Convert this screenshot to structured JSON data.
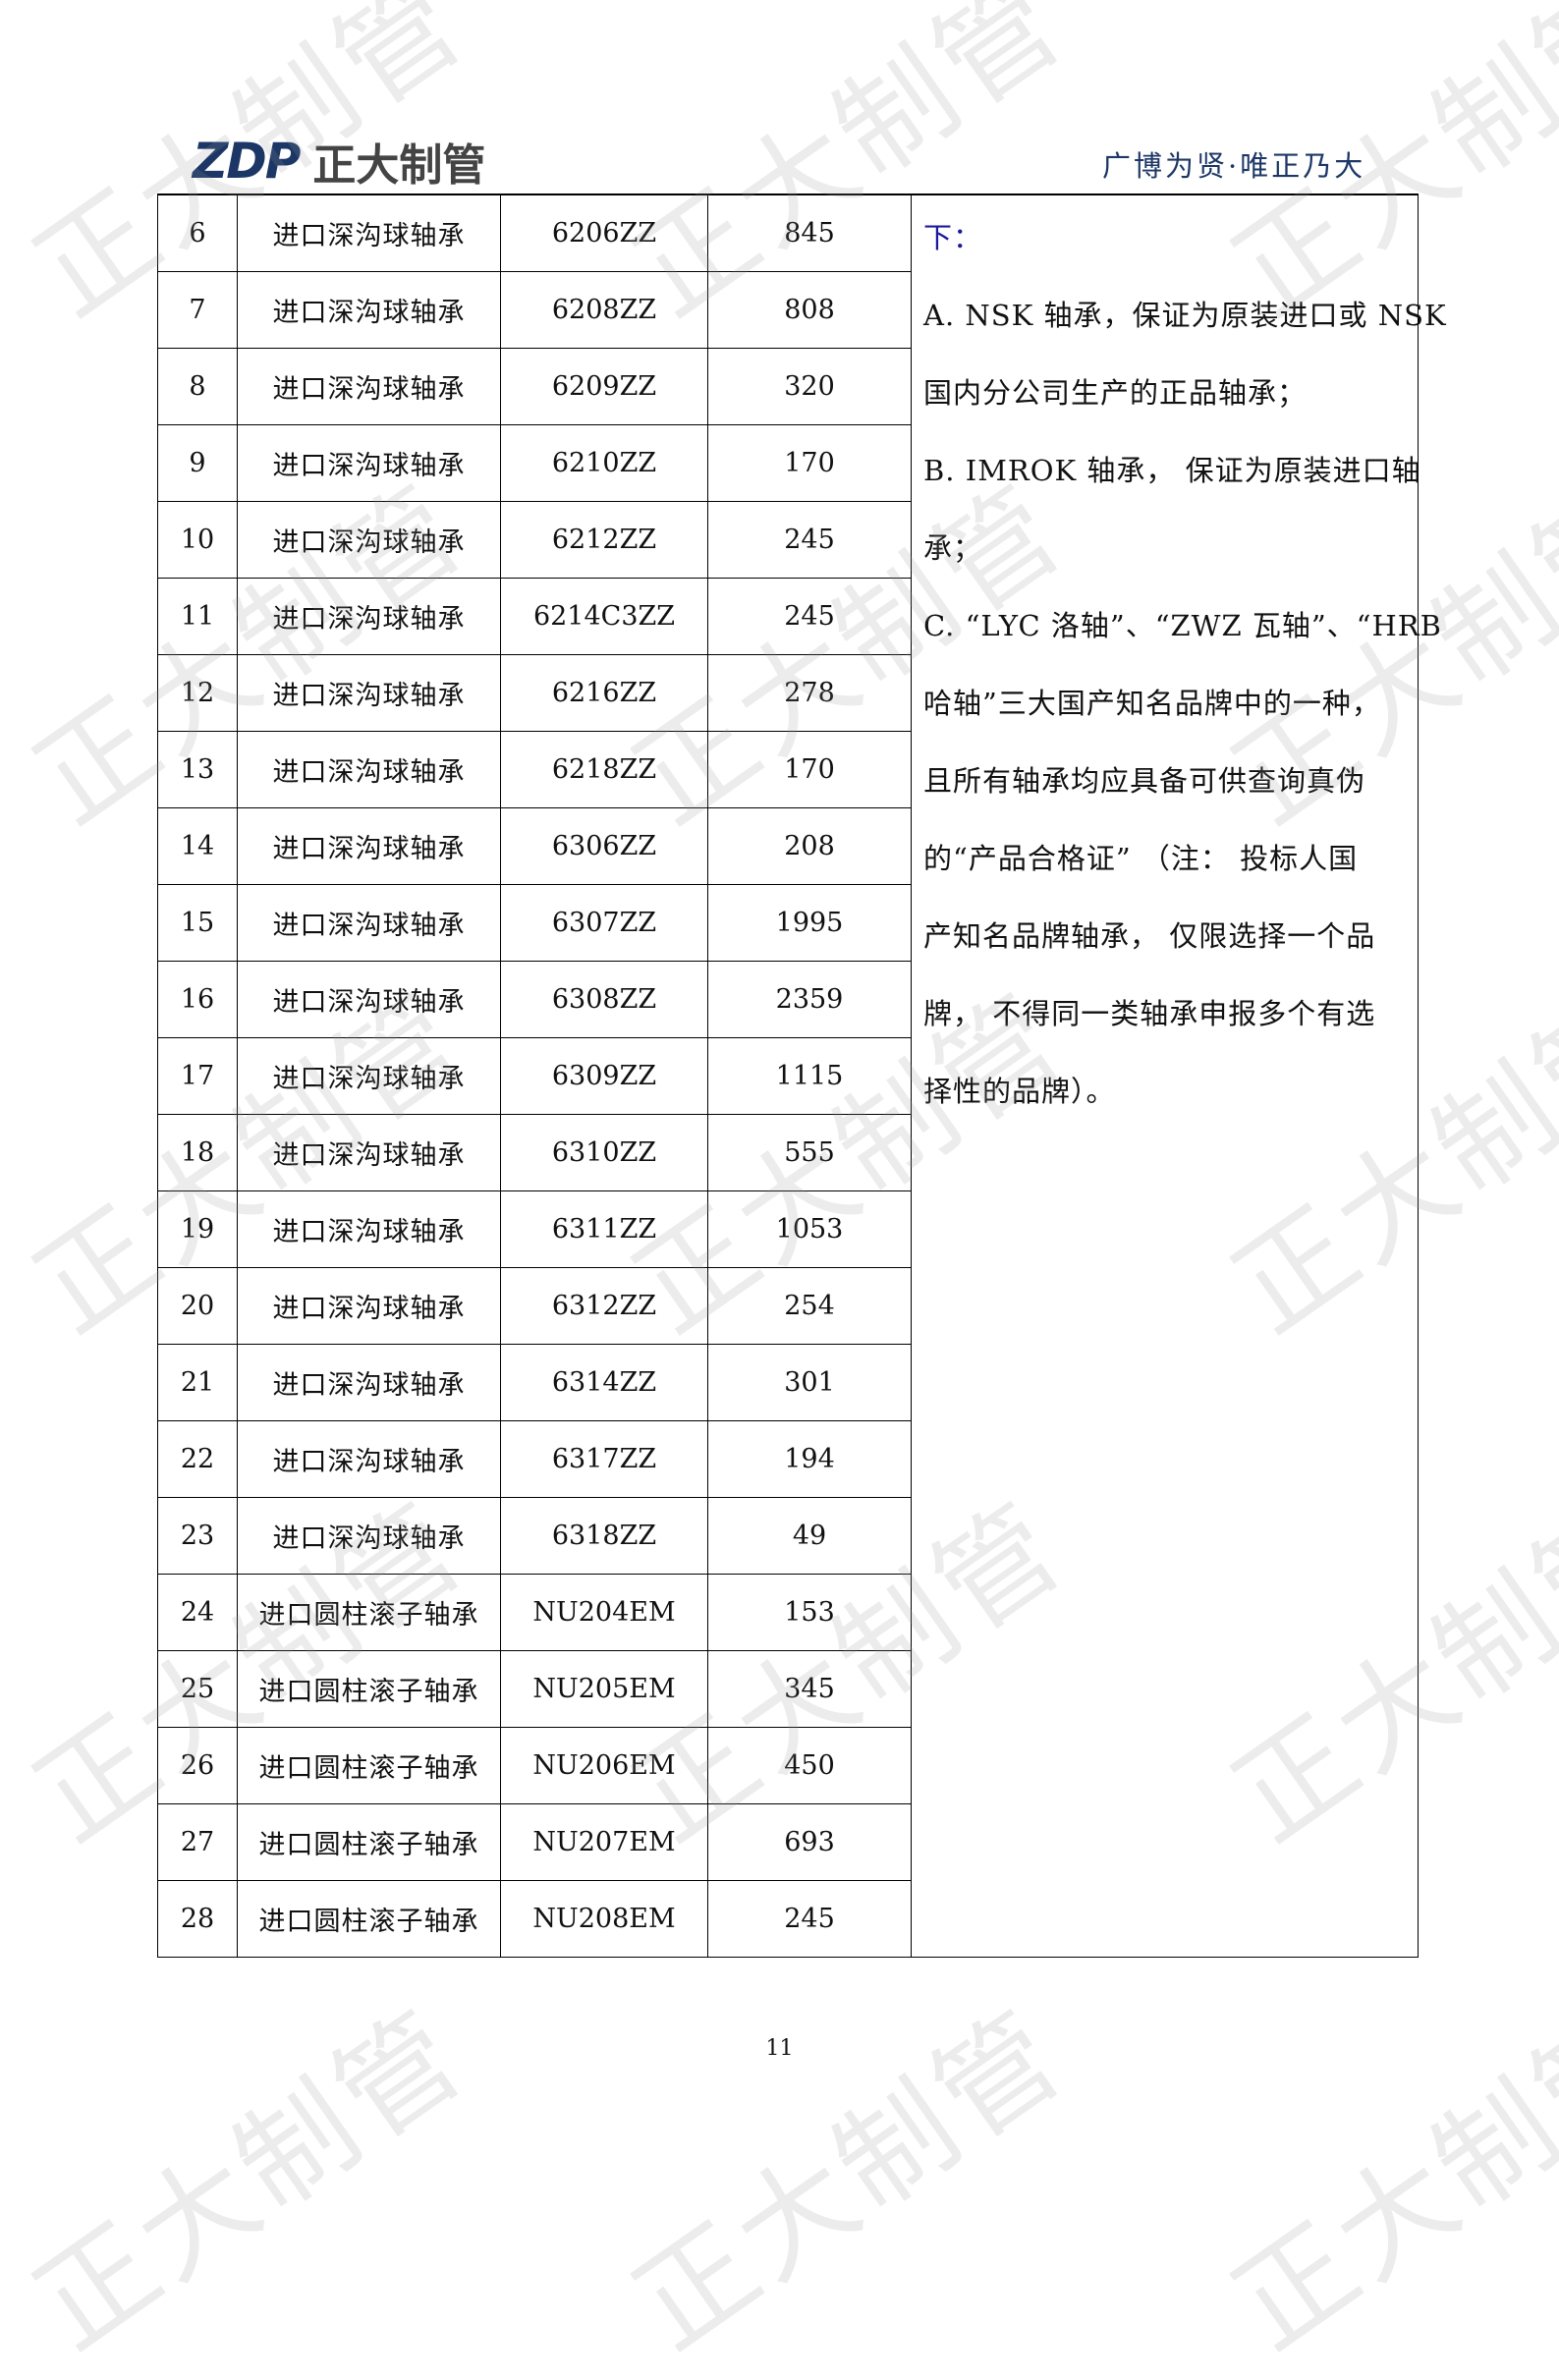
{
  "header": {
    "logo_mark": "ZDP",
    "logo_name": "正大制管",
    "slogan": "广博为贤·唯正乃大"
  },
  "watermark": "正大制管",
  "table": {
    "rows": [
      [
        "6",
        "进口深沟球轴承",
        "6206ZZ",
        "845"
      ],
      [
        "7",
        "进口深沟球轴承",
        "6208ZZ",
        "808"
      ],
      [
        "8",
        "进口深沟球轴承",
        "6209ZZ",
        "320"
      ],
      [
        "9",
        "进口深沟球轴承",
        "6210ZZ",
        "170"
      ],
      [
        "10",
        "进口深沟球轴承",
        "6212ZZ",
        "245"
      ],
      [
        "11",
        "进口深沟球轴承",
        "6214C3ZZ",
        "245"
      ],
      [
        "12",
        "进口深沟球轴承",
        "6216ZZ",
        "278"
      ],
      [
        "13",
        "进口深沟球轴承",
        "6218ZZ",
        "170"
      ],
      [
        "14",
        "进口深沟球轴承",
        "6306ZZ",
        "208"
      ],
      [
        "15",
        "进口深沟球轴承",
        "6307ZZ",
        "1995"
      ],
      [
        "16",
        "进口深沟球轴承",
        "6308ZZ",
        "2359"
      ],
      [
        "17",
        "进口深沟球轴承",
        "6309ZZ",
        "1115"
      ],
      [
        "18",
        "进口深沟球轴承",
        "6310ZZ",
        "555"
      ],
      [
        "19",
        "进口深沟球轴承",
        "6311ZZ",
        "1053"
      ],
      [
        "20",
        "进口深沟球轴承",
        "6312ZZ",
        "254"
      ],
      [
        "21",
        "进口深沟球轴承",
        "6314ZZ",
        "301"
      ],
      [
        "22",
        "进口深沟球轴承",
        "6317ZZ",
        "194"
      ],
      [
        "23",
        "进口深沟球轴承",
        "6318ZZ",
        "49"
      ],
      [
        "24",
        "进口圆柱滚子轴承",
        "NU204EM",
        "153"
      ],
      [
        "25",
        "进口圆柱滚子轴承",
        "NU205EM",
        "345"
      ],
      [
        "26",
        "进口圆柱滚子轴承",
        "NU206EM",
        "450"
      ],
      [
        "27",
        "进口圆柱滚子轴承",
        "NU207EM",
        "693"
      ],
      [
        "28",
        "进口圆柱滚子轴承",
        "NU208EM",
        "245"
      ]
    ],
    "note_lines": [
      "下：",
      "A. NSK 轴承，保证为原装进口或 NSK",
      "国内分公司生产的正品轴承；",
      "B. IMROK 轴承， 保证为原装进口轴",
      "承；",
      "C. “LYC 洛轴”、“ZWZ 瓦轴”、“HRB",
      "哈轴”三大国产知名品牌中的一种，",
      "且所有轴承均应具备可供查询真伪",
      "的“产品合格证” （注： 投标人国",
      "产知名品牌轴承， 仅限选择一个品",
      "牌， 不得同一类轴承申报多个有选",
      "择性的品牌）。"
    ]
  },
  "footer": {
    "page_number": "11"
  }
}
